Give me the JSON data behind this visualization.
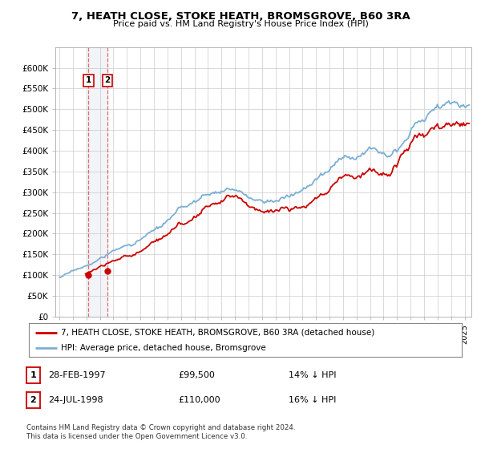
{
  "title": "7, HEATH CLOSE, STOKE HEATH, BROMSGROVE, B60 3RA",
  "subtitle": "Price paid vs. HM Land Registry's House Price Index (HPI)",
  "xlim_start": 1994.7,
  "xlim_end": 2025.5,
  "ylim": [
    0,
    650000
  ],
  "yticks": [
    0,
    50000,
    100000,
    150000,
    200000,
    250000,
    300000,
    350000,
    400000,
    450000,
    500000,
    550000,
    600000
  ],
  "ytick_labels": [
    "£0",
    "£50K",
    "£100K",
    "£150K",
    "£200K",
    "£250K",
    "£300K",
    "£350K",
    "£400K",
    "£450K",
    "£500K",
    "£550K",
    "£600K"
  ],
  "transactions": [
    {
      "date_num": 1997.16,
      "price": 99500,
      "label": "1"
    },
    {
      "date_num": 1998.56,
      "price": 110000,
      "label": "2"
    }
  ],
  "transaction_color": "#cc0000",
  "hpi_color": "#7bafd4",
  "legend_entries": [
    "7, HEATH CLOSE, STOKE HEATH, BROMSGROVE, B60 3RA (detached house)",
    "HPI: Average price, detached house, Bromsgrove"
  ],
  "table_rows": [
    {
      "num": "1",
      "date": "28-FEB-1997",
      "price": "£99,500",
      "change": "14% ↓ HPI"
    },
    {
      "num": "2",
      "date": "24-JUL-1998",
      "price": "£110,000",
      "change": "16% ↓ HPI"
    }
  ],
  "footnote": "Contains HM Land Registry data © Crown copyright and database right 2024.\nThis data is licensed under the Open Government Licence v3.0.",
  "bg_color": "#ffffff",
  "plot_bg": "#ffffff"
}
